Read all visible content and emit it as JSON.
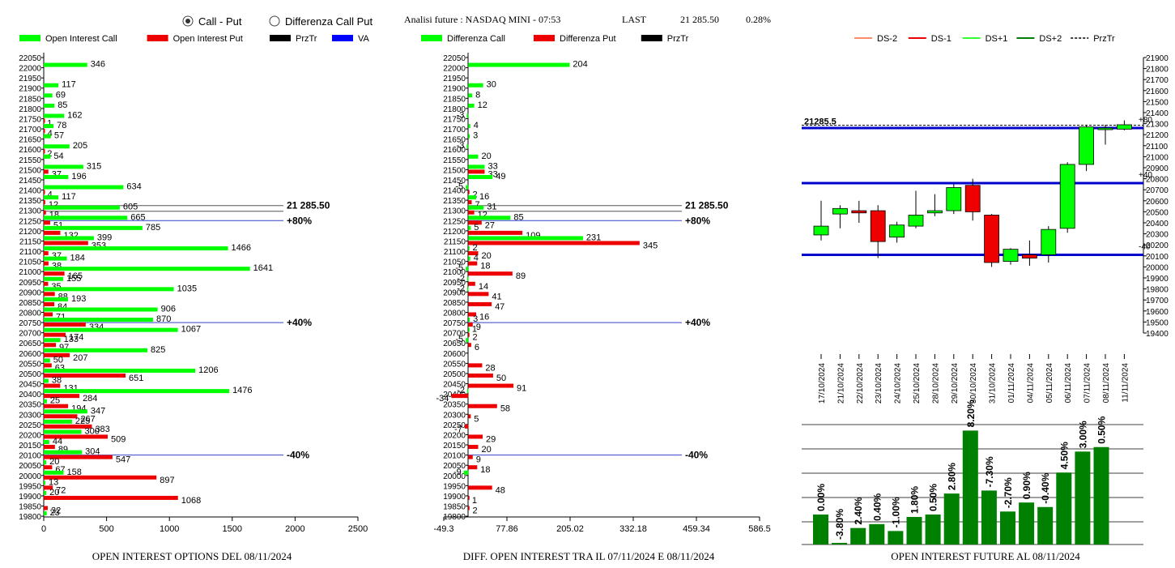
{
  "header": {
    "radio_call_put": "Call - Put",
    "radio_diff": "Differenza Call Put",
    "title": "Analisi future : NASDAQ MINI - 07:53",
    "last_label": "LAST",
    "last_value": "21 285.50",
    "change": "0.28%"
  },
  "colors": {
    "green": "#00ff00",
    "red": "#ee0000",
    "black": "#000000",
    "blue": "#0000ff",
    "dark_green": "#008000",
    "salmon": "#ff8c69",
    "light_green": "#33ff33"
  },
  "chart_data": [
    {
      "id": "oi",
      "type": "bar",
      "orientation": "horizontal",
      "title": "OPEN INTEREST OPTIONS DEL 08/11/2024",
      "legend": [
        "Open Interest Call",
        "Open Interest Put",
        "PrzTr",
        "VA"
      ],
      "xlim": [
        0,
        2500
      ],
      "xticks": [
        "0",
        "500",
        "1000",
        "1500",
        "2000",
        "2500"
      ],
      "categories": [
        "22050",
        "22000",
        "21950",
        "21900",
        "21850",
        "21800",
        "21750",
        "21700",
        "21650",
        "21600",
        "21550",
        "21500",
        "21450",
        "21400",
        "21350",
        "21300",
        "21250",
        "21200",
        "21150",
        "21100",
        "21050",
        "21000",
        "20950",
        "20900",
        "20850",
        "20800",
        "20750",
        "20700",
        "20650",
        "20600",
        "20550",
        "20500",
        "20450",
        "20400",
        "20350",
        "20300",
        "20250",
        "20200",
        "20150",
        "20100",
        "20050",
        "20000",
        "19950",
        "19900",
        "19850",
        "19800"
      ],
      "series": [
        {
          "name": "Open Interest Call",
          "values": [
            null,
            346,
            null,
            117,
            69,
            85,
            162,
            78,
            57,
            205,
            54,
            315,
            196,
            634,
            117,
            605,
            665,
            785,
            399,
            1466,
            184,
            1641,
            155,
            1035,
            193,
            906,
            870,
            1067,
            133,
            825,
            50,
            1206,
            38,
            1476,
            25,
            347,
            225,
            300,
            44,
            304,
            20,
            158,
            13,
            20,
            null,
            23
          ]
        },
        {
          "name": "Open Interest Put",
          "values": [
            null,
            null,
            null,
            null,
            null,
            null,
            1,
            4,
            null,
            2,
            null,
            37,
            null,
            4,
            12,
            18,
            51,
            132,
            353,
            37,
            38,
            165,
            35,
            88,
            84,
            71,
            334,
            174,
            97,
            207,
            63,
            651,
            131,
            284,
            194,
            267,
            383,
            509,
            89,
            547,
            67,
            897,
            72,
            1068,
            32,
            null
          ]
        }
      ],
      "reference_lines": [
        {
          "y": "21300",
          "label": "21 285.50"
        },
        {
          "y": "21250",
          "label": "+80%"
        },
        {
          "y": "20750",
          "label": "+40%"
        },
        {
          "y": "20100",
          "label": "-40%"
        }
      ]
    },
    {
      "id": "diff",
      "type": "bar",
      "orientation": "horizontal",
      "title": "DIFF. OPEN INTEREST TRA IL 07/11/2024 E 08/11/2024",
      "legend": [
        "Differenza Call",
        "Differenza Put",
        "PrzTr"
      ],
      "xlim": [
        -49.3,
        586.5
      ],
      "xticks": [
        "-49.3",
        "77.86",
        "205.02",
        "332.18",
        "459.34",
        "586.5"
      ],
      "categories": [
        "22050",
        "22000",
        "21950",
        "21900",
        "21850",
        "21800",
        "21750",
        "21700",
        "21650",
        "21600",
        "21550",
        "21500",
        "21450",
        "21400",
        "21350",
        "21300",
        "21250",
        "21200",
        "21150",
        "21100",
        "21050",
        "21000",
        "20950",
        "20900",
        "20850",
        "20800",
        "20750",
        "20700",
        "20650",
        "20600",
        "20550",
        "20500",
        "20450",
        "20400",
        "20350",
        "20300",
        "20250",
        "20200",
        "20150",
        "20100",
        "20050",
        "20000",
        "19950",
        "19900",
        "19850",
        "19800"
      ],
      "series": [
        {
          "name": "Differenza Call",
          "values": [
            null,
            204,
            null,
            30,
            8,
            12,
            -3,
            4,
            3,
            -3,
            20,
            33,
            49,
            -5,
            16,
            31,
            85,
            5,
            231,
            2,
            4,
            -5,
            -2,
            -2,
            null,
            null,
            3,
            1,
            -5,
            null,
            null,
            null,
            null,
            -2,
            null,
            null,
            null,
            null,
            null,
            null,
            null,
            -9,
            null,
            null,
            null,
            null
          ]
        },
        {
          "name": "Differenza Put",
          "values": [
            null,
            null,
            null,
            null,
            null,
            null,
            null,
            null,
            null,
            null,
            null,
            33,
            null,
            2,
            7,
            12,
            27,
            109,
            345,
            20,
            18,
            89,
            14,
            41,
            47,
            16,
            9,
            2,
            6,
            null,
            28,
            50,
            91,
            -34,
            58,
            5,
            -7,
            29,
            20,
            9,
            18,
            null,
            48,
            1,
            2,
            null
          ]
        }
      ],
      "reference_lines": [
        {
          "y": "21300",
          "label": "21 285.50"
        },
        {
          "y": "21250",
          "label": "+80%"
        },
        {
          "y": "20750",
          "label": "+40%"
        },
        {
          "y": "20100",
          "label": "-40%"
        }
      ]
    },
    {
      "id": "candles",
      "type": "candlestick",
      "legend": [
        "DS-2",
        "DS-1",
        "DS+1",
        "DS+2",
        "PrzTr"
      ],
      "ylim": [
        19400,
        21900
      ],
      "yticks": [
        "19400",
        "19500",
        "19600",
        "19700",
        "19800",
        "19900",
        "20000",
        "20100",
        "20200",
        "20300",
        "20400",
        "20500",
        "20600",
        "20700",
        "20800",
        "20900",
        "21000",
        "21100",
        "21200",
        "21300",
        "21400",
        "21500",
        "21600",
        "21700",
        "21800",
        "21900"
      ],
      "categories": [
        "17/10/2024",
        "21/10/2024",
        "22/10/2024",
        "23/10/2024",
        "24/10/2024",
        "25/10/2024",
        "28/10/2024",
        "29/10/2024",
        "30/10/2024",
        "31/10/2024",
        "01/11/2024",
        "04/11/2024",
        "05/11/2024",
        "06/11/2024",
        "07/11/2024",
        "08/11/2024",
        "11/11/2024"
      ],
      "candles": [
        {
          "o": 20290,
          "c": 20370,
          "h": 20600,
          "l": 20240
        },
        {
          "o": 20480,
          "c": 20530,
          "h": 20560,
          "l": 20350
        },
        {
          "o": 20510,
          "c": 20490,
          "h": 20600,
          "l": 20400
        },
        {
          "o": 20510,
          "c": 20230,
          "h": 20560,
          "l": 20080
        },
        {
          "o": 20270,
          "c": 20380,
          "h": 20410,
          "l": 20220
        },
        {
          "o": 20370,
          "c": 20470,
          "h": 20690,
          "l": 20350
        },
        {
          "o": 20490,
          "c": 20510,
          "h": 20660,
          "l": 20460
        },
        {
          "o": 20510,
          "c": 20720,
          "h": 20750,
          "l": 20480
        },
        {
          "o": 20740,
          "c": 20500,
          "h": 20800,
          "l": 20420
        },
        {
          "o": 20470,
          "c": 20040,
          "h": 20480,
          "l": 20000
        },
        {
          "o": 20050,
          "c": 20160,
          "h": 20170,
          "l": 20020
        },
        {
          "o": 20110,
          "c": 20080,
          "h": 20240,
          "l": 20010
        },
        {
          "o": 20110,
          "c": 20340,
          "h": 20370,
          "l": 20040
        },
        {
          "o": 20350,
          "c": 20930,
          "h": 20950,
          "l": 20310
        },
        {
          "o": 20930,
          "c": 21270,
          "h": 21290,
          "l": 20870
        },
        {
          "o": 21250,
          "c": 21260,
          "h": 21290,
          "l": 21110
        },
        {
          "o": 21250,
          "c": 21290,
          "h": 21330,
          "l": 21240
        }
      ],
      "levels": [
        {
          "value": 21260,
          "label": "+80"
        },
        {
          "value": 20760,
          "label": "+40"
        },
        {
          "value": 20110,
          "label": "-40"
        }
      ],
      "price": {
        "value": 21285.5,
        "label": "21285.5"
      }
    },
    {
      "id": "future_oi",
      "type": "bar",
      "title": "OPEN INTEREST FUTURE AL 08/11/2024",
      "labels": [
        "0.00%",
        "-3.80%",
        "2.40%",
        "0.40%",
        "-1.00%",
        "1.80%",
        "0.50%",
        "2.80%",
        "8.20%",
        "-7.30%",
        "-2.70%",
        "0.90%",
        "-0.40%",
        "4.50%",
        "3.00%",
        "0.50%"
      ],
      "values": [
        1.0,
        0.0,
        0.55,
        0.68,
        0.45,
        0.92,
        1.0,
        1.7,
        3.8,
        1.8,
        1.1,
        1.4,
        1.25,
        2.4,
        3.1,
        3.25
      ]
    }
  ]
}
